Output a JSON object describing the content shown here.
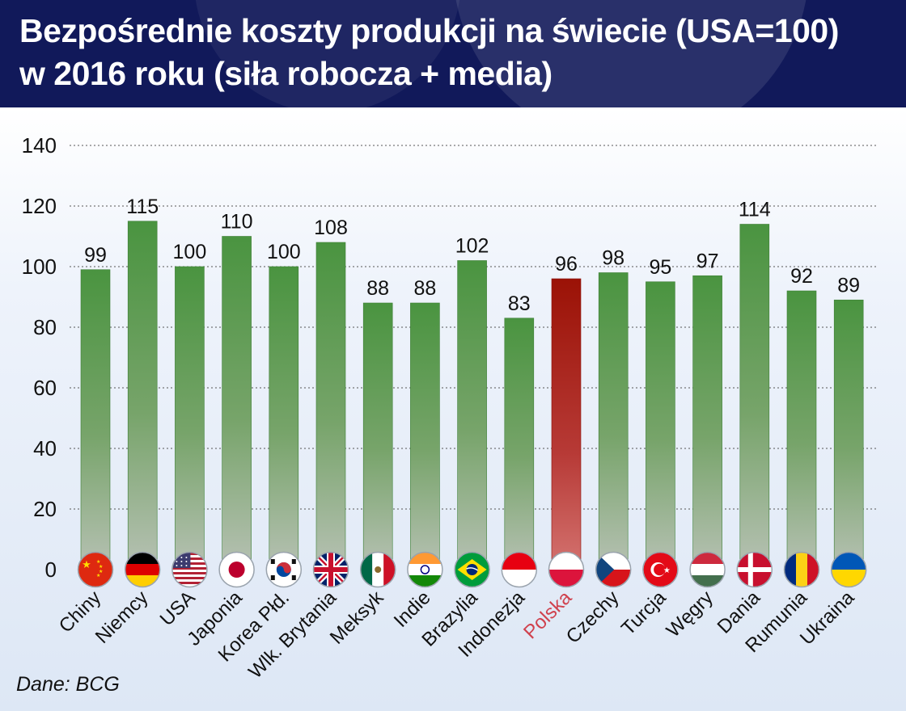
{
  "header": {
    "title_line1": "Bezpośrednie koszty produkcji na świecie (USA=100)",
    "title_line2": "w 2016 roku (siła robocza + media)"
  },
  "source": "Dane: BCG",
  "colors": {
    "header_bg": "#11195a",
    "bar_green": "#4a9440",
    "bar_highlight": "#9b1206",
    "highlight_label": "#d0424e"
  },
  "chart_data": {
    "type": "bar",
    "title": "Bezpośrednie koszty produkcji na świecie (USA=100) w 2016 roku (siła robocza + media)",
    "xlabel": "",
    "ylabel": "",
    "ylim": [
      0,
      140
    ],
    "yticks": [
      0,
      20,
      40,
      60,
      80,
      100,
      120,
      140
    ],
    "grid": true,
    "categories": [
      "Chiny",
      "Niemcy",
      "USA",
      "Japonia",
      "Korea Płd.",
      "Wlk. Brytania",
      "Meksyk",
      "Indie",
      "Brazylia",
      "Indonezja",
      "Polska",
      "Czechy",
      "Turcja",
      "Węgry",
      "Dania",
      "Rumunia",
      "Ukraina"
    ],
    "values": [
      99,
      115,
      100,
      110,
      100,
      108,
      88,
      88,
      102,
      83,
      96,
      98,
      95,
      97,
      114,
      92,
      89
    ],
    "highlight": "Polska",
    "flag_icons": [
      "china-flag-icon",
      "germany-flag-icon",
      "usa-flag-icon",
      "japan-flag-icon",
      "south-korea-flag-icon",
      "uk-flag-icon",
      "mexico-flag-icon",
      "india-flag-icon",
      "brazil-flag-icon",
      "indonesia-flag-icon",
      "poland-flag-icon",
      "czechia-flag-icon",
      "turkey-flag-icon",
      "hungary-flag-icon",
      "denmark-flag-icon",
      "romania-flag-icon",
      "ukraine-flag-icon"
    ]
  }
}
